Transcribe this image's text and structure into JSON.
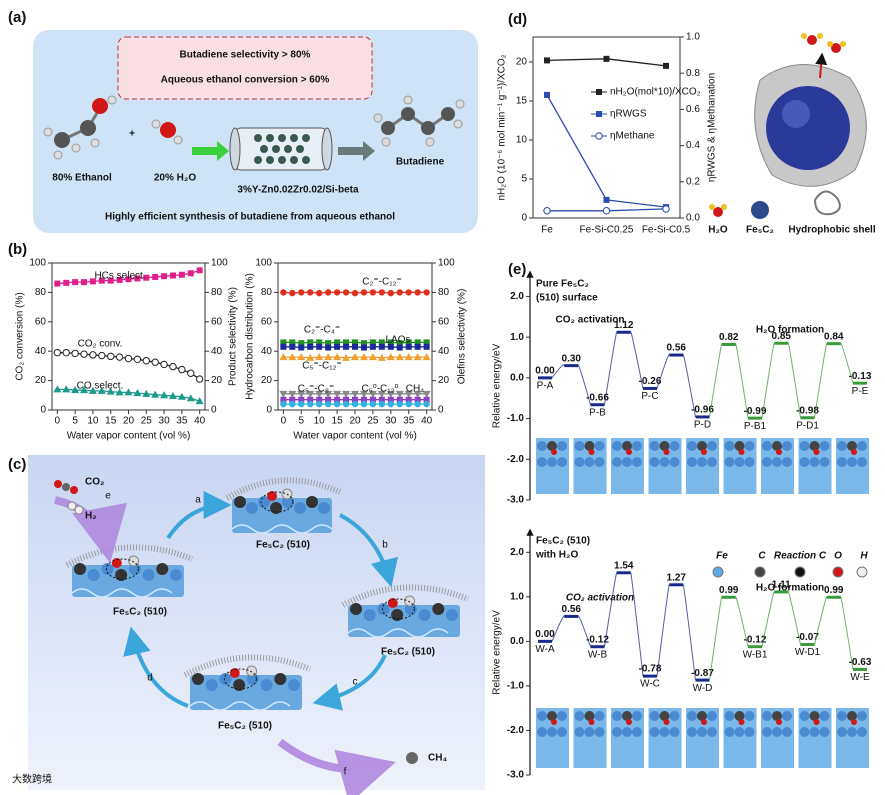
{
  "panel_labels": [
    "(a)",
    "(b)",
    "(c)",
    "(d)",
    "(e)"
  ],
  "panel_a": {
    "highlights": [
      "Butadiene selectivity > 80%",
      "Aqueous ethanol conversion > 60%"
    ],
    "reactants": [
      "80% Ethanol",
      "20% H₂O"
    ],
    "catalyst": "3%Y-Zn0.02Zr0.02/Si-beta",
    "product": "Butadiene",
    "caption": "Highly efficient synthesis of butadiene from aqueous ethanol"
  },
  "panel_c": {
    "reactants": [
      "CO₂",
      "H₂"
    ],
    "surfaces": [
      "Fe₅C₂ (510)",
      "Fe₅C₂ (510)",
      "Fe₅C₂ (510)",
      "Fe₅C₂ (510)"
    ],
    "steps": [
      "a",
      "b",
      "c",
      "d",
      "e",
      "f"
    ],
    "product": "CH₄",
    "watermark": "大数跨境"
  },
  "panel_d_illustration": {
    "labels": [
      "H₂O",
      "Fe₅C₂",
      "Hydrophobic shell"
    ]
  },
  "panel_e": {
    "top_title": [
      "Pure Fe₅C₂",
      "(510) surface"
    ],
    "bottom_title": [
      "Fe₅C₂ (510)",
      "with H₂O"
    ],
    "legend": [
      "Fe",
      "C",
      "Reaction C",
      "O",
      "H"
    ]
  },
  "chart_data": [
    {
      "type": "line",
      "xlabel": "Water vapor content (vol %)",
      "ylabel": "CO₂ conversion (%)",
      "y2label": "Product selectivity (%)",
      "x": [
        0,
        2.5,
        5,
        7.5,
        10,
        12.5,
        15,
        17.5,
        20,
        22.5,
        25,
        27.5,
        30,
        32.5,
        35,
        37.5,
        40
      ],
      "xlim": [
        -1.5,
        41.5
      ],
      "xticks": [
        0,
        5,
        10,
        15,
        20,
        25,
        30,
        35,
        40
      ],
      "ylim": [
        0,
        100
      ],
      "yticks": [
        0,
        20,
        40,
        60,
        80,
        100
      ],
      "y2lim": [
        0,
        100
      ],
      "y2ticks": [
        0,
        20,
        40,
        60,
        80,
        100
      ],
      "series": [
        {
          "name": "HCs select.",
          "color": "#e0208a",
          "marker": "square",
          "axis": "y2",
          "values": [
            86,
            86.5,
            87,
            87,
            87.5,
            88,
            88,
            88.5,
            89,
            89.5,
            90,
            90.5,
            91,
            91.5,
            92,
            93,
            95
          ]
        },
        {
          "name": "CO₂ conv.",
          "color": "#222222",
          "marker": "circle-open",
          "values": [
            39,
            39,
            38.5,
            38,
            37.5,
            37,
            36.5,
            36,
            35,
            34.5,
            33.5,
            32.5,
            31,
            29.5,
            27.5,
            25,
            21
          ]
        },
        {
          "name": "CO select.",
          "color": "#1a9a8a",
          "marker": "triangle",
          "axis": "y2",
          "values": [
            14,
            14,
            13.5,
            13.5,
            13,
            13,
            12.5,
            12,
            12,
            11.5,
            11,
            10.5,
            10,
            9.5,
            9,
            8,
            6
          ]
        }
      ]
    },
    {
      "type": "line",
      "xlabel": "Water vapor content (vol %)",
      "ylabel": "Hydrocarbon distribution (%)",
      "y2label": "Olefins selectivity (%)",
      "x": [
        0,
        2.5,
        5,
        7.5,
        10,
        12.5,
        15,
        17.5,
        20,
        22.5,
        25,
        27.5,
        30,
        32.5,
        35,
        37.5,
        40
      ],
      "xlim": [
        -1.5,
        41.5
      ],
      "xticks": [
        0,
        5,
        10,
        15,
        20,
        25,
        30,
        35,
        40
      ],
      "ylim": [
        0,
        100
      ],
      "yticks": [
        0,
        20,
        40,
        60,
        80,
        100
      ],
      "y2lim": [
        0,
        100
      ],
      "y2ticks": [
        0,
        20,
        40,
        60,
        80,
        100
      ],
      "series": [
        {
          "name": "C₂⁼-C₁₂⁼",
          "color": "#e03020",
          "marker": "circle",
          "axis": "y2",
          "values": [
            80,
            79.5,
            80,
            80,
            79.5,
            80,
            80,
            80,
            79.5,
            80,
            80,
            80,
            79.5,
            80,
            80,
            80,
            80
          ]
        },
        {
          "name": "LAOs",
          "color": "#209020",
          "marker": "square",
          "axis": "y2",
          "values": [
            46,
            46,
            45.5,
            46,
            46,
            45.5,
            46,
            46,
            46,
            45.5,
            46,
            46,
            46,
            45.5,
            46,
            46,
            46
          ]
        },
        {
          "name": "C₂⁼-C₄⁼",
          "color": "#1a2a9a",
          "marker": "square",
          "values": [
            43,
            43,
            42.5,
            43,
            43,
            42.5,
            43,
            43,
            43,
            42.5,
            43,
            43,
            43,
            42.5,
            43,
            43,
            43
          ]
        },
        {
          "name": "C₅⁼-C₁₂⁼",
          "color": "#f0a030",
          "marker": "triangle",
          "values": [
            36,
            36,
            36,
            35.5,
            36,
            36,
            36,
            35.5,
            36,
            36,
            36,
            35.5,
            36,
            36,
            36,
            36,
            36
          ]
        },
        {
          "name": "C₅⁰-C₁₂⁰",
          "color": "#888888",
          "marker": "triangle-down",
          "values": [
            11,
            11,
            11,
            11,
            11,
            11,
            11,
            11,
            11,
            11,
            11,
            11,
            11,
            11,
            11,
            11,
            11
          ]
        },
        {
          "name": "C₅⁼-C₈⁼",
          "color": "#9040c0",
          "marker": "square",
          "values": [
            7,
            7,
            7,
            7,
            7,
            7,
            7,
            7,
            7,
            7,
            7,
            7,
            7,
            7,
            7,
            7,
            7
          ]
        },
        {
          "name": "CH₄",
          "color": "#30b0e0",
          "marker": "circle",
          "values": [
            4,
            4,
            4,
            4,
            4,
            4,
            4,
            4,
            4,
            4,
            4,
            4,
            4,
            4,
            4,
            4,
            4
          ]
        }
      ]
    },
    {
      "type": "line",
      "ylabel": "nH₂O (10⁻⁶ mol min⁻¹ g⁻¹)/XCO₂",
      "y2label": "ηRWGS & ηMethanation",
      "categories": [
        "Fe",
        "Fe-Si-C0.25",
        "Fe-Si-C0.5"
      ],
      "ylim": [
        0,
        23.2
      ],
      "yticks": [
        0,
        5,
        10,
        15,
        20
      ],
      "y2lim": [
        0,
        1
      ],
      "y2ticks": [
        {
          "value": 0,
          "label": "0.0"
        },
        0.2,
        0.4,
        0.6,
        0.8,
        {
          "value": 1,
          "label": "1.0"
        }
      ],
      "legend": "upper right",
      "series": [
        {
          "name": "nH₂O(mol*10)/XCO₂",
          "color": "#222222",
          "marker": "square",
          "values": [
            20.2,
            20.4,
            19.5
          ]
        },
        {
          "name": "ηRWGS",
          "color": "#2a4ab0",
          "marker": "square",
          "axis": "y2",
          "values": [
            0.68,
            0.1,
            0.06
          ]
        },
        {
          "name": "ηMethane",
          "color": "#2a4ab0",
          "marker": "circle-open",
          "axis": "y2",
          "values": [
            0.04,
            0.04,
            0.05
          ]
        }
      ]
    },
    {
      "type": "energy",
      "ylabel": "Relative energy/eV",
      "categories": [
        "P-A",
        null,
        "P-B",
        null,
        "P-C",
        null,
        "P-D",
        null,
        "P-B1",
        null,
        "P-D1",
        null,
        "P-E"
      ],
      "ylim": [
        -3.0,
        2.6
      ],
      "yticks": [
        {
          "value": 2,
          "label": "2.0"
        },
        {
          "value": 1,
          "label": "1.0"
        },
        {
          "value": 0,
          "label": "0.0"
        },
        {
          "value": -1,
          "label": "-1.0"
        },
        {
          "value": -2,
          "label": "-2.0"
        },
        {
          "value": -3,
          "label": "-3.0"
        }
      ],
      "series": [
        {
          "name": "CO₂ activation",
          "color": "#1a2a8a",
          "values": [
            0,
            0.3,
            -0.66,
            1.12,
            -0.26,
            0.56,
            -0.96,
            null,
            null,
            null,
            null,
            null,
            null
          ],
          "value_labels": [
            "0.00",
            "0.30",
            "-0.66",
            "1.12",
            "-0.26",
            "0.56",
            "-0.96",
            null,
            null,
            null,
            null,
            null,
            null
          ]
        },
        {
          "name": "H₂O formation",
          "color": "#3a9a3a",
          "values": [
            null,
            null,
            null,
            null,
            null,
            null,
            null,
            0.82,
            -0.99,
            0.85,
            -0.98,
            0.84,
            -0.13
          ],
          "value_labels": [
            null,
            null,
            null,
            null,
            null,
            null,
            null,
            "0.82",
            "-0.99",
            "0.85",
            "-0.98",
            "0.84",
            "-0.13"
          ]
        }
      ]
    },
    {
      "type": "energy",
      "ylabel": "Relative energy/eV",
      "categories": [
        "W-A",
        null,
        "W-B",
        null,
        "W-C",
        null,
        "W-D",
        null,
        "W-B1",
        null,
        "W-D1",
        null,
        "W-E"
      ],
      "ylim": [
        -3.0,
        2.5
      ],
      "yticks": [
        {
          "value": 2,
          "label": "2.0"
        },
        {
          "value": 1,
          "label": "1.0"
        },
        {
          "value": 0,
          "label": "0.0"
        },
        {
          "value": -1,
          "label": "-1.0"
        },
        {
          "value": -2,
          "label": "-2.0"
        },
        {
          "value": -3,
          "label": "-3.0"
        }
      ],
      "series": [
        {
          "name": "CO₂ activation",
          "color": "#1a2a8a",
          "values": [
            0,
            0.56,
            -0.12,
            1.54,
            -0.78,
            1.27,
            -0.87,
            null,
            null,
            null,
            null,
            null,
            null
          ],
          "value_labels": [
            "0.00",
            "0.56",
            "-0.12",
            "1.54",
            "-0.78",
            "1.27",
            "-0.87",
            null,
            null,
            null,
            null,
            null,
            null
          ]
        },
        {
          "name": "H₂O formation",
          "color": "#3a9a3a",
          "values": [
            null,
            null,
            null,
            null,
            null,
            null,
            null,
            0.99,
            -0.12,
            1.11,
            -0.07,
            0.99,
            -0.63
          ],
          "value_labels": [
            null,
            null,
            null,
            null,
            null,
            null,
            null,
            "0.99",
            "-0.12",
            "1.11",
            "-0.07",
            "0.99",
            "-0.63"
          ]
        }
      ]
    }
  ]
}
